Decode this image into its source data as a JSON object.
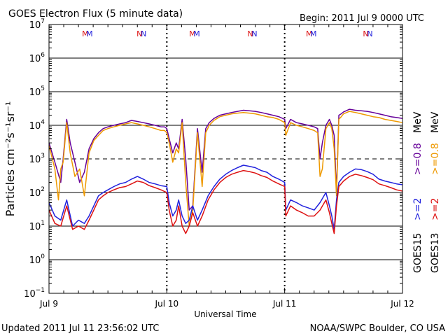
{
  "header": {
    "title": "GOES Electron Flux (5 minute data)",
    "begin": "Begin: 2011 Jul 9 0000 UTC"
  },
  "footer": {
    "updated": "Updated 2011 Jul 11 23:56:02 UTC",
    "source": "NOAA/SWPC Boulder, CO USA"
  },
  "colors": {
    "goes15_low": "#2222dd",
    "goes13_low": "#dd1111",
    "goes15_high": "#660099",
    "goes13_high": "#ee9900",
    "M_marker_color1": "#dd1111",
    "M_marker_color2": "#2222dd"
  },
  "chart_data": {
    "type": "line",
    "title": "GOES Electron Flux (5 minute data)",
    "xlabel": "Universal Time",
    "ylabel": "Particles cm⁻²s⁻¹sr⁻¹",
    "y_scale": "log",
    "ylim": [
      0.1,
      10000000
    ],
    "y_ticks": [
      {
        "base": "10",
        "exp": "7"
      },
      {
        "base": "10",
        "exp": "6"
      },
      {
        "base": "10",
        "exp": "5"
      },
      {
        "base": "10",
        "exp": "4"
      },
      {
        "base": "10",
        "exp": "3"
      },
      {
        "base": "10",
        "exp": "2"
      },
      {
        "base": "10",
        "exp": "1"
      },
      {
        "base": "10",
        "exp": "0"
      },
      {
        "base": "10",
        "exp": "−1"
      }
    ],
    "y_gridlines_solid": [
      1000000,
      100000,
      10000,
      100,
      10,
      1
    ],
    "y_gridline_dashed": 1000,
    "x_ticks": [
      "Jul 9",
      "Jul 10",
      "Jul 11",
      "Jul 12"
    ],
    "xlim": [
      "2011-07-09 00:00",
      "2011-07-12 00:00"
    ],
    "day_markers": [
      {
        "label": "M",
        "day": 0.32
      },
      {
        "label": "N",
        "day": 0.78
      },
      {
        "label": "M",
        "day": 1.23
      },
      {
        "label": "N",
        "day": 1.72
      },
      {
        "label": "M",
        "day": 2.22
      },
      {
        "label": "N",
        "day": 2.7
      }
    ],
    "legend": {
      "placement": "right",
      "goes15_label": "GOES15",
      "goes13_label": "GOES13",
      "goes15_low": ">=2",
      "goes15_high": ">=0.8",
      "goes13_low": ">=2",
      "goes13_high": ">=0.8",
      "unit": "MeV"
    },
    "series": [
      {
        "name": ">=0.8 MeV GOES15",
        "color_key": "goes15_high",
        "days": [
          0.0,
          0.05,
          0.1,
          0.12,
          0.15,
          0.18,
          0.22,
          0.26,
          0.3,
          0.34,
          0.38,
          0.42,
          0.46,
          0.5,
          0.55,
          0.6,
          0.65,
          0.7,
          0.75,
          0.8,
          0.85,
          0.9,
          0.95,
          0.98,
          1.0,
          1.02,
          1.05,
          1.08,
          1.1,
          1.13,
          1.16,
          1.19,
          1.22,
          1.26,
          1.3,
          1.33,
          1.36,
          1.4,
          1.45,
          1.5,
          1.55,
          1.6,
          1.65,
          1.7,
          1.75,
          1.8,
          1.85,
          1.9,
          1.95,
          2.0,
          2.01,
          2.05,
          2.1,
          2.15,
          2.2,
          2.25,
          2.28,
          2.3,
          2.32,
          2.35,
          2.38,
          2.4,
          2.42,
          2.44,
          2.46,
          2.48,
          2.5,
          2.55,
          2.6,
          2.65,
          2.7,
          2.75,
          2.8,
          2.85,
          2.9,
          2.95,
          3.0
        ],
        "values": [
          3000,
          800,
          200,
          1000,
          15000,
          3000,
          800,
          200,
          400,
          2000,
          4000,
          6000,
          8000,
          9000,
          10000,
          11000,
          12000,
          14000,
          13000,
          12000,
          11000,
          10000,
          9000,
          9000,
          8000,
          4000,
          1500,
          3000,
          2000,
          15000,
          1000,
          30,
          40,
          8000,
          400,
          8000,
          12000,
          16000,
          20000,
          22000,
          24000,
          26000,
          28000,
          27000,
          26000,
          24000,
          22000,
          20000,
          18000,
          15000,
          8000,
          15000,
          12000,
          11000,
          10000,
          9000,
          8000,
          1000,
          3000,
          10000,
          15000,
          10000,
          5000,
          100,
          20000,
          22000,
          25000,
          30000,
          28000,
          27000,
          26000,
          24000,
          22000,
          20000,
          18000,
          17000,
          16000
        ]
      },
      {
        "name": ">=0.8 MeV GOES13",
        "color_key": "goes13_high",
        "days": [
          0.0,
          0.05,
          0.08,
          0.1,
          0.12,
          0.15,
          0.18,
          0.22,
          0.26,
          0.3,
          0.34,
          0.38,
          0.42,
          0.46,
          0.5,
          0.55,
          0.6,
          0.65,
          0.7,
          0.75,
          0.8,
          0.85,
          0.9,
          0.95,
          0.98,
          1.0,
          1.02,
          1.05,
          1.08,
          1.1,
          1.13,
          1.16,
          1.19,
          1.22,
          1.26,
          1.3,
          1.33,
          1.36,
          1.4,
          1.45,
          1.5,
          1.55,
          1.6,
          1.65,
          1.7,
          1.75,
          1.8,
          1.85,
          1.9,
          1.95,
          2.0,
          2.01,
          2.05,
          2.1,
          2.15,
          2.2,
          2.25,
          2.28,
          2.3,
          2.32,
          2.35,
          2.38,
          2.4,
          2.42,
          2.44,
          2.46,
          2.48,
          2.5,
          2.55,
          2.6,
          2.65,
          2.7,
          2.75,
          2.8,
          2.85,
          2.9,
          2.95,
          3.0
        ],
        "values": [
          2500,
          500,
          60,
          500,
          800,
          12000,
          1500,
          300,
          500,
          80,
          1500,
          3500,
          5000,
          7000,
          8000,
          9000,
          10000,
          11000,
          12000,
          11000,
          10000,
          9000,
          8000,
          7000,
          7000,
          6000,
          3000,
          800,
          2000,
          1500,
          12000,
          200,
          10,
          30,
          6000,
          150,
          6000,
          10000,
          14000,
          18000,
          20000,
          22000,
          23000,
          24000,
          23000,
          22000,
          20000,
          18000,
          17000,
          15000,
          12000,
          5000,
          12000,
          10000,
          9000,
          8000,
          7000,
          6000,
          300,
          500,
          8000,
          12000,
          8000,
          2000,
          80,
          15000,
          18000,
          22000,
          26000,
          24000,
          22000,
          20000,
          18000,
          17000,
          15000,
          14000,
          13000,
          12000
        ]
      },
      {
        "name": ">=2 MeV GOES15",
        "color_key": "goes15_low",
        "days": [
          0.0,
          0.05,
          0.1,
          0.15,
          0.2,
          0.25,
          0.3,
          0.34,
          0.38,
          0.42,
          0.46,
          0.5,
          0.55,
          0.6,
          0.65,
          0.7,
          0.75,
          0.8,
          0.85,
          0.9,
          0.95,
          1.0,
          1.02,
          1.05,
          1.08,
          1.1,
          1.13,
          1.16,
          1.19,
          1.22,
          1.26,
          1.3,
          1.35,
          1.4,
          1.45,
          1.5,
          1.55,
          1.6,
          1.65,
          1.7,
          1.75,
          1.8,
          1.85,
          1.9,
          1.95,
          2.0,
          2.01,
          2.05,
          2.1,
          2.15,
          2.2,
          2.25,
          2.3,
          2.35,
          2.38,
          2.4,
          2.42,
          2.44,
          2.46,
          2.5,
          2.55,
          2.6,
          2.65,
          2.7,
          2.75,
          2.8,
          2.85,
          2.9,
          2.95,
          3.0
        ],
        "values": [
          50,
          20,
          15,
          60,
          10,
          15,
          12,
          20,
          40,
          80,
          100,
          120,
          150,
          180,
          200,
          250,
          300,
          250,
          200,
          180,
          160,
          150,
          50,
          20,
          30,
          60,
          20,
          12,
          15,
          40,
          15,
          30,
          80,
          150,
          250,
          350,
          450,
          550,
          650,
          600,
          550,
          450,
          400,
          300,
          250,
          200,
          30,
          60,
          50,
          40,
          35,
          30,
          50,
          100,
          40,
          20,
          8,
          60,
          200,
          300,
          400,
          500,
          480,
          420,
          350,
          250,
          220,
          200,
          180,
          170
        ]
      },
      {
        "name": ">=2 MeV GOES13",
        "color_key": "goes13_low",
        "days": [
          0.0,
          0.05,
          0.1,
          0.15,
          0.2,
          0.25,
          0.3,
          0.34,
          0.38,
          0.42,
          0.46,
          0.5,
          0.55,
          0.6,
          0.65,
          0.7,
          0.75,
          0.8,
          0.85,
          0.9,
          0.95,
          1.0,
          1.02,
          1.05,
          1.08,
          1.1,
          1.13,
          1.16,
          1.19,
          1.22,
          1.26,
          1.3,
          1.35,
          1.4,
          1.45,
          1.5,
          1.55,
          1.6,
          1.65,
          1.7,
          1.75,
          1.8,
          1.85,
          1.9,
          1.95,
          2.0,
          2.01,
          2.05,
          2.1,
          2.15,
          2.2,
          2.25,
          2.3,
          2.35,
          2.38,
          2.4,
          2.42,
          2.44,
          2.46,
          2.5,
          2.55,
          2.6,
          2.65,
          2.7,
          2.75,
          2.8,
          2.85,
          2.9,
          2.95,
          3.0
        ],
        "values": [
          30,
          12,
          10,
          40,
          8,
          10,
          8,
          15,
          30,
          60,
          80,
          100,
          120,
          140,
          150,
          180,
          220,
          200,
          160,
          140,
          120,
          100,
          30,
          10,
          15,
          40,
          10,
          6,
          10,
          25,
          10,
          20,
          60,
          120,
          200,
          280,
          350,
          400,
          450,
          420,
          380,
          320,
          280,
          220,
          180,
          150,
          20,
          40,
          30,
          25,
          20,
          20,
          30,
          60,
          25,
          12,
          6,
          40,
          150,
          220,
          300,
          350,
          320,
          280,
          240,
          180,
          160,
          140,
          120,
          110
        ]
      }
    ]
  }
}
